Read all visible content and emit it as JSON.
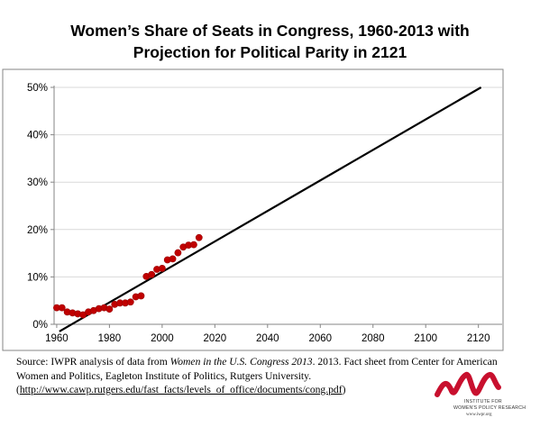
{
  "title": {
    "line1": "Women’s Share of Seats in Congress, 1960-2013 with",
    "line2": "Projection for Political Parity in 2121"
  },
  "source": {
    "prefix": "Source: IWPR analysis of data from ",
    "italic": "Women in the U.S. Congress 2013",
    "rest": ". 2013. Fact sheet from Center for American Women and Politics, Eagleton Institute of Politics, Rutgers University.",
    "link_open": "(",
    "link": "http://www.cawp.rutgers.edu/fast_facts/levels_of_office/documents/cong.pdf",
    "link_close": ")"
  },
  "logo": {
    "line1": "INSTITUTE FOR",
    "line2": "WOMEN'S POLICY RESEARCH",
    "url": "www.iwpr.org"
  },
  "colors": {
    "points": "#c00000",
    "trendline": "#000000",
    "logo": "#c8102e",
    "gridline": "#d9d9d9",
    "frame": "#868686"
  },
  "chart_data": {
    "type": "scatter",
    "title": "Women’s Share of Seats in Congress, 1960-2013 with Projection for Political Parity in 2121",
    "xlabel": "",
    "ylabel": "",
    "xlim": [
      1959,
      2129
    ],
    "ylim": [
      0,
      50
    ],
    "x_ticks": [
      1960,
      1980,
      2000,
      2020,
      2040,
      2060,
      2080,
      2100,
      2120
    ],
    "y_ticks": [
      0,
      10,
      20,
      30,
      40,
      50
    ],
    "y_tick_labels": [
      "0%",
      "10%",
      "20%",
      "30%",
      "40%",
      "50%"
    ],
    "grid": "horizontal",
    "series": [
      {
        "kind": "points",
        "marker": "circle",
        "points": [
          {
            "x": 1960,
            "y": 3.5
          },
          {
            "x": 1962,
            "y": 3.5
          },
          {
            "x": 1964,
            "y": 2.6
          },
          {
            "x": 1966,
            "y": 2.4
          },
          {
            "x": 1968,
            "y": 2.2
          },
          {
            "x": 1970,
            "y": 2.0
          },
          {
            "x": 1972,
            "y": 2.6
          },
          {
            "x": 1974,
            "y": 2.9
          },
          {
            "x": 1976,
            "y": 3.3
          },
          {
            "x": 1978,
            "y": 3.5
          },
          {
            "x": 1980,
            "y": 3.2
          },
          {
            "x": 1982,
            "y": 4.2
          },
          {
            "x": 1984,
            "y": 4.5
          },
          {
            "x": 1986,
            "y": 4.5
          },
          {
            "x": 1988,
            "y": 4.7
          },
          {
            "x": 1990,
            "y": 5.8
          },
          {
            "x": 1992,
            "y": 6.0
          },
          {
            "x": 1994,
            "y": 10.1
          },
          {
            "x": 1996,
            "y": 10.5
          },
          {
            "x": 1998,
            "y": 11.6
          },
          {
            "x": 2000,
            "y": 11.8
          },
          {
            "x": 2002,
            "y": 13.6
          },
          {
            "x": 2004,
            "y": 13.8
          },
          {
            "x": 2006,
            "y": 15.1
          },
          {
            "x": 2008,
            "y": 16.3
          },
          {
            "x": 2010,
            "y": 16.7
          },
          {
            "x": 2012,
            "y": 16.8
          },
          {
            "x": 2014,
            "y": 18.3
          }
        ]
      },
      {
        "kind": "trendline",
        "points": [
          {
            "x": 1961,
            "y": -1.5
          },
          {
            "x": 2121,
            "y": 50
          }
        ]
      }
    ]
  }
}
